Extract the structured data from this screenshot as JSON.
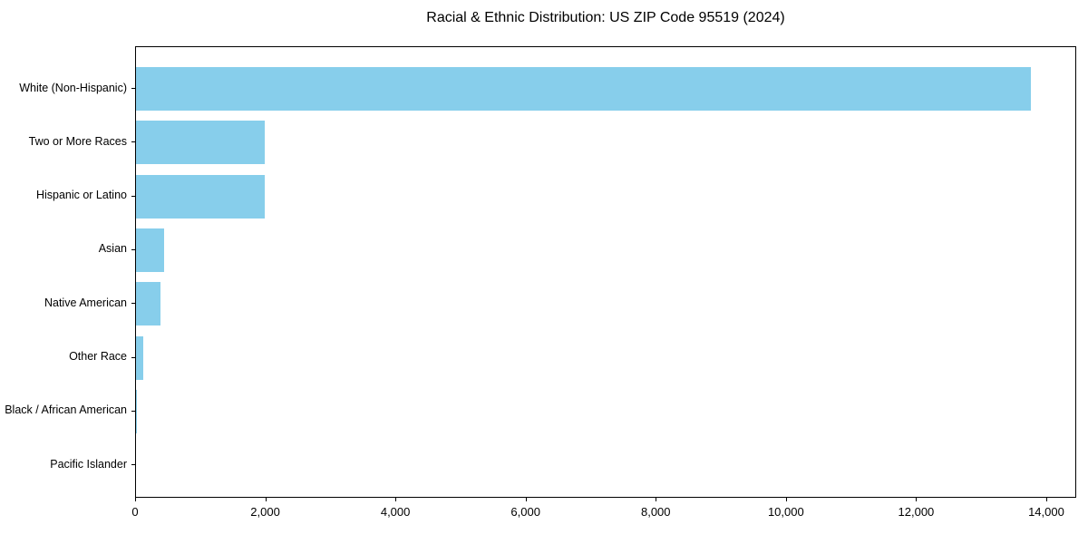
{
  "chart_data": {
    "type": "bar",
    "orientation": "horizontal",
    "title": "Racial & Ethnic Distribution: US ZIP Code 95519 (2024)",
    "xlabel": "",
    "ylabel": "",
    "categories": [
      "White (Non-Hispanic)",
      "Two or More Races",
      "Hispanic or Latino",
      "Asian",
      "Native American",
      "Other Race",
      "Black / African American",
      "Pacific Islander"
    ],
    "values": [
      13750,
      1980,
      1980,
      430,
      375,
      110,
      15,
      0
    ],
    "xlim": [
      0,
      14460
    ],
    "x_ticks": [
      0,
      2000,
      4000,
      6000,
      8000,
      10000,
      12000,
      14000
    ],
    "x_tick_labels": [
      "0",
      "2,000",
      "4,000",
      "6,000",
      "8,000",
      "10,000",
      "12,000",
      "14,000"
    ],
    "bar_color": "#87CEEB",
    "grid": false,
    "legend": null
  }
}
